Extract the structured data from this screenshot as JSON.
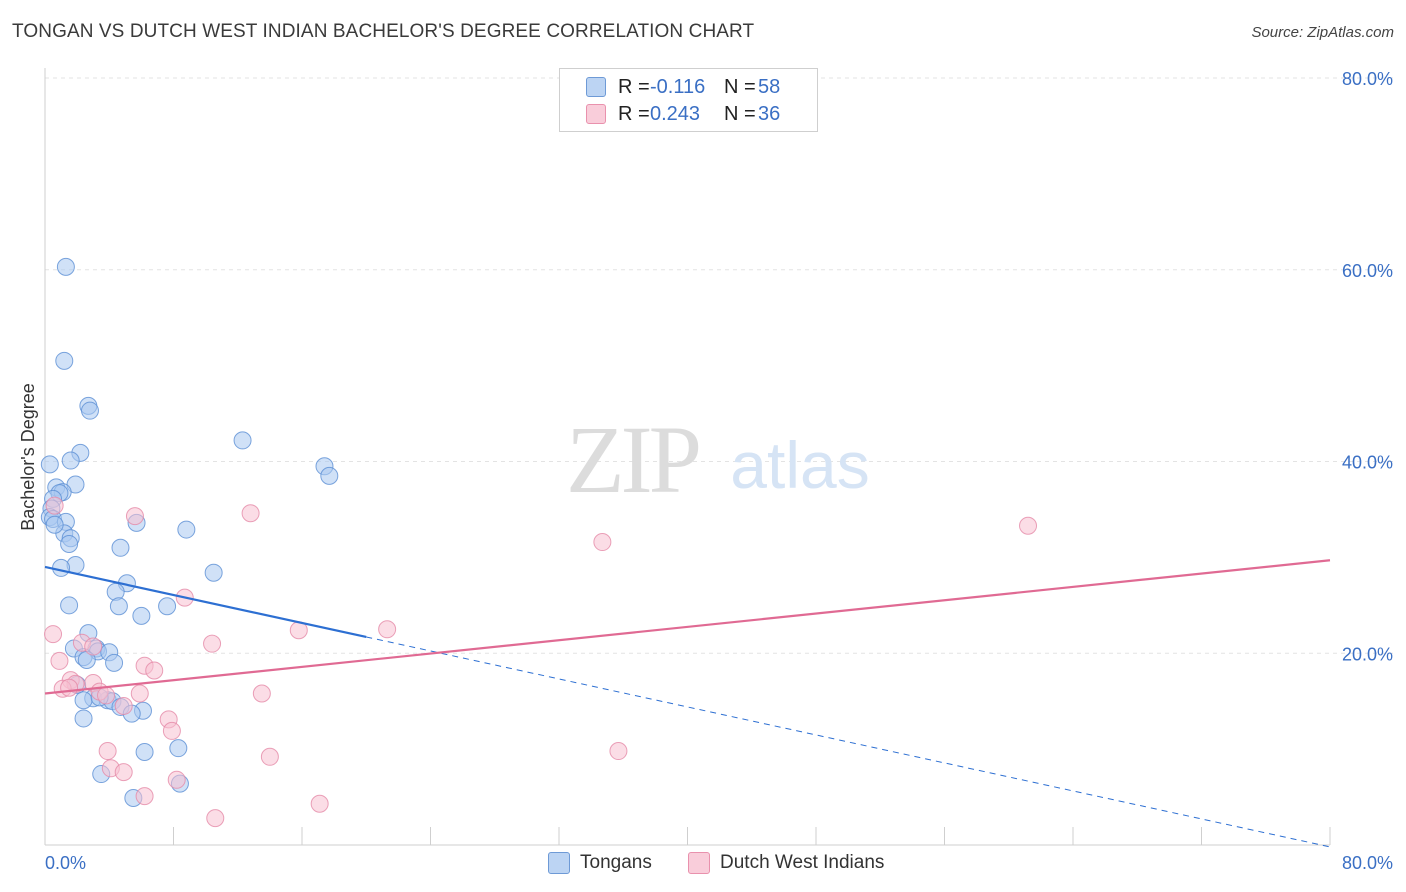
{
  "title": "TONGAN VS DUTCH WEST INDIAN BACHELOR'S DEGREE CORRELATION CHART",
  "source": "Source: ZipAtlas.com",
  "watermark": {
    "zip": "ZIP",
    "atlas": "atlas"
  },
  "legend": {
    "r_label": "R =",
    "n_label": "N =",
    "series1": {
      "r": "-0.116",
      "n": "58"
    },
    "series2": {
      "r": "0.243",
      "n": "36"
    }
  },
  "bottom_legend": [
    "Tongans",
    "Dutch West Indians"
  ],
  "colors": {
    "tongans_fill": "#a9c8f0",
    "tongans_stroke": "#5b8fd4",
    "tongans_line": "#2d6fd2",
    "dutch_fill": "#f7c1d1",
    "dutch_stroke": "#e58aa8",
    "dutch_line": "#e06a93",
    "axis_text": "#3a6fc4",
    "grid": "#e3e3e3"
  },
  "chart_data": {
    "type": "scatter",
    "title": "TONGAN VS DUTCH WEST INDIAN BACHELOR'S DEGREE CORRELATION CHART",
    "xlabel": "",
    "ylabel": "Bachelor's Degree",
    "xlim": [
      0,
      80
    ],
    "ylim": [
      0,
      80
    ],
    "x_tick_labels": [
      "0.0%",
      "80.0%"
    ],
    "y_tick_labels": [
      "20.0%",
      "40.0%",
      "60.0%",
      "80.0%"
    ],
    "y_ticks": [
      20,
      40,
      60,
      80
    ],
    "x_minor_ticks": [
      8,
      16,
      24,
      32,
      40,
      48,
      56,
      64,
      72,
      80
    ],
    "series": [
      {
        "name": "Tongans",
        "r": -0.116,
        "n": 58,
        "trend": {
          "x0": 0,
          "y0": 29.0,
          "x1": 20,
          "y1": 21.7,
          "dash_x_end": 80
        },
        "points": [
          [
            1.3,
            60.3
          ],
          [
            1.2,
            50.5
          ],
          [
            2.7,
            45.8
          ],
          [
            2.8,
            45.3
          ],
          [
            12.3,
            42.2
          ],
          [
            2.2,
            40.9
          ],
          [
            1.6,
            40.1
          ],
          [
            0.3,
            39.7
          ],
          [
            17.4,
            39.5
          ],
          [
            17.7,
            38.5
          ],
          [
            1.9,
            37.6
          ],
          [
            0.7,
            37.3
          ],
          [
            1.1,
            36.8
          ],
          [
            0.9,
            36.7
          ],
          [
            0.5,
            36.1
          ],
          [
            0.4,
            35.1
          ],
          [
            0.3,
            34.2
          ],
          [
            0.5,
            34.0
          ],
          [
            1.3,
            33.7
          ],
          [
            5.7,
            33.6
          ],
          [
            8.8,
            32.9
          ],
          [
            1.2,
            32.5
          ],
          [
            1.6,
            32.0
          ],
          [
            1.5,
            31.4
          ],
          [
            4.7,
            31.0
          ],
          [
            1.9,
            29.2
          ],
          [
            1.0,
            28.9
          ],
          [
            10.5,
            28.4
          ],
          [
            5.1,
            27.3
          ],
          [
            4.4,
            26.4
          ],
          [
            1.5,
            25.0
          ],
          [
            4.6,
            24.9
          ],
          [
            7.6,
            24.9
          ],
          [
            6.0,
            23.9
          ],
          [
            2.7,
            22.1
          ],
          [
            1.8,
            20.5
          ],
          [
            3.2,
            20.5
          ],
          [
            3.3,
            20.2
          ],
          [
            4.0,
            20.1
          ],
          [
            2.4,
            19.6
          ],
          [
            2.6,
            19.3
          ],
          [
            4.3,
            19.0
          ],
          [
            2.0,
            16.7
          ],
          [
            3.0,
            15.3
          ],
          [
            2.4,
            15.1
          ],
          [
            3.9,
            15.1
          ],
          [
            4.2,
            15.0
          ],
          [
            4.7,
            14.4
          ],
          [
            6.1,
            14.0
          ],
          [
            5.4,
            13.7
          ],
          [
            2.4,
            13.2
          ],
          [
            8.3,
            10.1
          ],
          [
            6.2,
            9.7
          ],
          [
            3.5,
            7.4
          ],
          [
            8.4,
            6.4
          ],
          [
            5.5,
            4.9
          ],
          [
            3.4,
            15.4
          ],
          [
            0.6,
            33.4
          ]
        ]
      },
      {
        "name": "Dutch West Indians",
        "r": 0.243,
        "n": 36,
        "trend": {
          "x0": 0,
          "y0": 15.8,
          "x1": 80,
          "y1": 29.7
        },
        "points": [
          [
            61.2,
            33.3
          ],
          [
            12.8,
            34.6
          ],
          [
            5.6,
            34.3
          ],
          [
            34.7,
            31.6
          ],
          [
            0.6,
            35.4
          ],
          [
            8.7,
            25.8
          ],
          [
            0.5,
            22.0
          ],
          [
            15.8,
            22.4
          ],
          [
            21.3,
            22.5
          ],
          [
            10.4,
            21.0
          ],
          [
            2.3,
            21.1
          ],
          [
            3.0,
            20.7
          ],
          [
            0.9,
            19.2
          ],
          [
            6.2,
            18.7
          ],
          [
            6.8,
            18.2
          ],
          [
            1.6,
            17.2
          ],
          [
            1.9,
            16.8
          ],
          [
            3.0,
            16.9
          ],
          [
            1.1,
            16.3
          ],
          [
            1.5,
            16.4
          ],
          [
            3.4,
            16.0
          ],
          [
            3.8,
            15.6
          ],
          [
            5.9,
            15.8
          ],
          [
            13.5,
            15.8
          ],
          [
            4.9,
            14.5
          ],
          [
            7.7,
            13.1
          ],
          [
            7.9,
            11.9
          ],
          [
            3.9,
            9.8
          ],
          [
            35.7,
            9.8
          ],
          [
            14.0,
            9.2
          ],
          [
            4.1,
            8.0
          ],
          [
            4.9,
            7.6
          ],
          [
            8.2,
            6.8
          ],
          [
            17.1,
            4.3
          ],
          [
            6.2,
            5.1
          ],
          [
            10.6,
            2.8
          ]
        ]
      }
    ]
  }
}
